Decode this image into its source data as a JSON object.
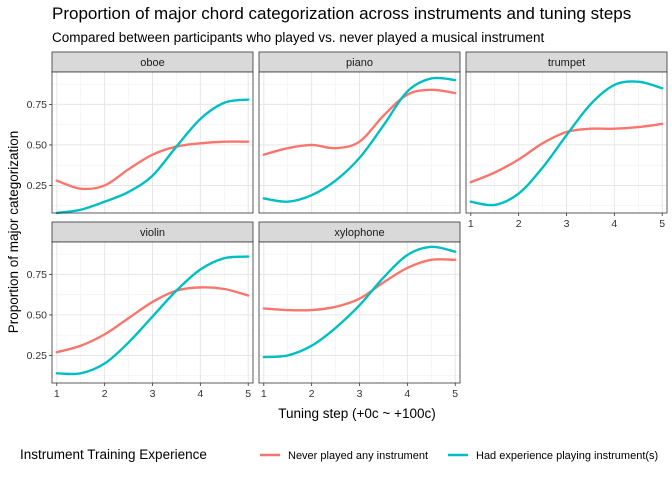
{
  "chart_data": {
    "type": "line",
    "title": "Proportion of major chord categorization across instruments and tuning steps",
    "subtitle": "Compared between participants who played vs. never played a musical instrument",
    "xlabel": "Tuning step (+0c ~ +100c)",
    "ylabel": "Proportion of major categorization",
    "xlim": [
      0.9,
      5.1
    ],
    "ylim": [
      0.08,
      0.95
    ],
    "x_ticks": [
      1,
      2,
      3,
      4,
      5
    ],
    "y_ticks": [
      0.25,
      0.5,
      0.75
    ],
    "y_tick_labels": [
      "0.25",
      "0.50",
      "0.75"
    ],
    "grid": true,
    "legend": {
      "position": "bottom",
      "title": "Instrument Training Experience"
    },
    "series_defs": [
      {
        "name": "Never played any instrument",
        "color": "#F8766D"
      },
      {
        "name": "Had experience playing instrument(s)",
        "color": "#00BFC4"
      }
    ],
    "facets": [
      {
        "label": "oboe",
        "series": [
          {
            "name": "Never played any instrument",
            "x": [
              1,
              1.5,
              2,
              2.5,
              3,
              3.5,
              4,
              4.5,
              5
            ],
            "values": [
              0.28,
              0.23,
              0.25,
              0.35,
              0.44,
              0.49,
              0.51,
              0.52,
              0.52
            ]
          },
          {
            "name": "Had experience playing instrument(s)",
            "x": [
              1,
              1.5,
              2,
              2.5,
              3,
              3.5,
              4,
              4.5,
              5
            ],
            "values": [
              0.08,
              0.1,
              0.15,
              0.21,
              0.31,
              0.49,
              0.66,
              0.76,
              0.78
            ]
          }
        ]
      },
      {
        "label": "piano",
        "series": [
          {
            "name": "Never played any instrument",
            "x": [
              1,
              1.5,
              2,
              2.5,
              3,
              3.5,
              4,
              4.5,
              5
            ],
            "values": [
              0.44,
              0.48,
              0.5,
              0.48,
              0.52,
              0.68,
              0.81,
              0.84,
              0.82
            ]
          },
          {
            "name": "Had experience playing instrument(s)",
            "x": [
              1,
              1.5,
              2,
              2.5,
              3,
              3.5,
              4,
              4.5,
              5
            ],
            "values": [
              0.17,
              0.15,
              0.19,
              0.28,
              0.42,
              0.62,
              0.83,
              0.91,
              0.9
            ]
          }
        ]
      },
      {
        "label": "trumpet",
        "series": [
          {
            "name": "Never played any instrument",
            "x": [
              1,
              1.5,
              2,
              2.5,
              3,
              3.5,
              4,
              4.5,
              5
            ],
            "values": [
              0.27,
              0.33,
              0.41,
              0.51,
              0.58,
              0.6,
              0.6,
              0.61,
              0.63
            ]
          },
          {
            "name": "Had experience playing instrument(s)",
            "x": [
              1,
              1.5,
              2,
              2.5,
              3,
              3.5,
              4,
              4.5,
              5
            ],
            "values": [
              0.15,
              0.13,
              0.2,
              0.36,
              0.56,
              0.75,
              0.87,
              0.89,
              0.85
            ]
          }
        ]
      },
      {
        "label": "violin",
        "series": [
          {
            "name": "Never played any instrument",
            "x": [
              1,
              1.5,
              2,
              2.5,
              3,
              3.5,
              4,
              4.5,
              5
            ],
            "values": [
              0.27,
              0.31,
              0.38,
              0.48,
              0.58,
              0.65,
              0.67,
              0.66,
              0.62
            ]
          },
          {
            "name": "Had experience playing instrument(s)",
            "x": [
              1,
              1.5,
              2,
              2.5,
              3,
              3.5,
              4,
              4.5,
              5
            ],
            "values": [
              0.14,
              0.14,
              0.2,
              0.33,
              0.49,
              0.65,
              0.78,
              0.85,
              0.86
            ]
          }
        ]
      },
      {
        "label": "xylophone",
        "series": [
          {
            "name": "Never played any instrument",
            "x": [
              1,
              1.5,
              2,
              2.5,
              3,
              3.5,
              4,
              4.5,
              5
            ],
            "values": [
              0.54,
              0.53,
              0.53,
              0.55,
              0.6,
              0.7,
              0.79,
              0.84,
              0.84
            ]
          },
          {
            "name": "Had experience playing instrument(s)",
            "x": [
              1,
              1.5,
              2,
              2.5,
              3,
              3.5,
              4,
              4.5,
              5
            ],
            "values": [
              0.24,
              0.25,
              0.31,
              0.42,
              0.56,
              0.73,
              0.87,
              0.92,
              0.89
            ]
          }
        ]
      }
    ]
  }
}
